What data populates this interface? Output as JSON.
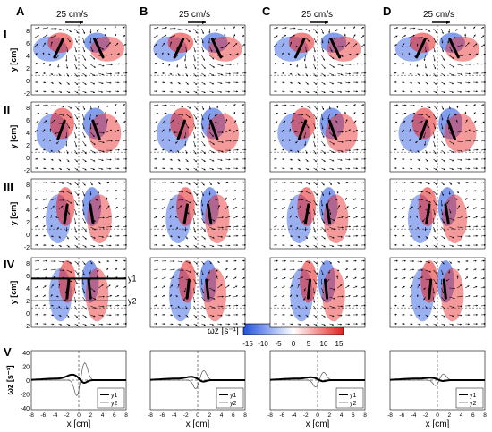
{
  "columns": [
    "A",
    "B",
    "C",
    "D"
  ],
  "rows": [
    "I",
    "II",
    "III",
    "IV",
    "V"
  ],
  "scale_label": "25 cm/s",
  "panel_ylabel": "y [cm]",
  "panel_y_ticks": [
    "8",
    "6",
    "4",
    "2",
    "0",
    "-2"
  ],
  "profile_ylabel": "ωz [s⁻¹]",
  "profile_y_ticks": [
    "40",
    "20",
    "0",
    "-20",
    "-40"
  ],
  "x_ticks": [
    "-8",
    "-6",
    "-4",
    "-2",
    "0",
    "2",
    "4",
    "6",
    "8"
  ],
  "x_label": "x [cm]",
  "line_labels": [
    "y1",
    "y2"
  ],
  "legend": [
    "y1",
    "y2"
  ],
  "colorbar": {
    "label": "ωz [s⁻¹]",
    "ticks": [
      "-15",
      "-10",
      "-5",
      "0",
      "5",
      "10",
      "15"
    ],
    "colors": {
      "neg": "#1f4fe0",
      "zero": "#ffffff",
      "pos": "#e81f1f"
    }
  },
  "colors": {
    "arrow": "#000000",
    "vorticity_pos": "#e81f1f",
    "vorticity_neg": "#1f4fe0"
  }
}
